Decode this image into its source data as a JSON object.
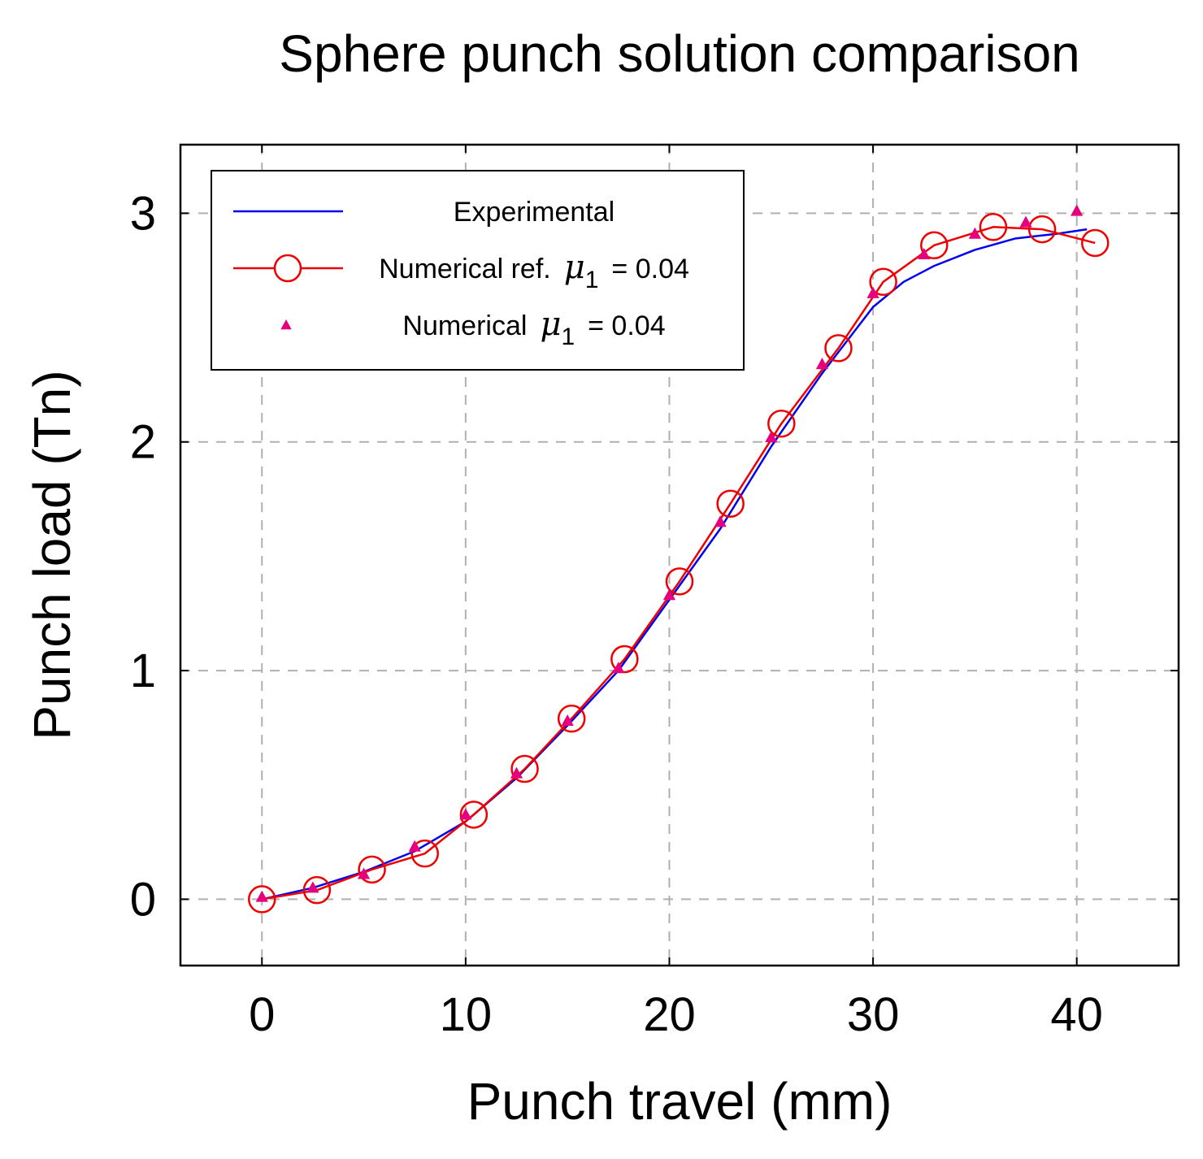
{
  "chart_data": {
    "type": "line",
    "title": "Sphere punch solution comparison",
    "xlabel": "Punch travel (mm)",
    "ylabel": "Punch load (Tn)",
    "xlim": [
      -4,
      45
    ],
    "ylim": [
      -0.29,
      3.3
    ],
    "xticks": [
      0,
      10,
      20,
      30,
      40
    ],
    "yticks": [
      0,
      1,
      2,
      3
    ],
    "xtick_labels": [
      "0",
      "10",
      "20",
      "30",
      "40"
    ],
    "ytick_labels": [
      "0",
      "1",
      "2",
      "3"
    ],
    "grid": true,
    "legend_position": "top-left",
    "series": [
      {
        "name": "Experimental",
        "style": "line",
        "color": "#0000ee",
        "x": [
          0,
          2.5,
          5,
          7.5,
          10,
          12.5,
          15,
          17.5,
          20,
          22.5,
          25,
          27.5,
          30,
          31.5,
          33,
          35,
          37,
          39,
          40.5
        ],
        "y": [
          0.0,
          0.05,
          0.12,
          0.21,
          0.34,
          0.53,
          0.76,
          1.0,
          1.31,
          1.62,
          1.98,
          2.3,
          2.59,
          2.7,
          2.77,
          2.84,
          2.89,
          2.91,
          2.93
        ]
      },
      {
        "name": "Numerical ref.",
        "name_suffix": "= 0.04",
        "symbol": "μ",
        "subscript": "1",
        "style": "line-circle",
        "color": "#ee0000",
        "x": [
          0,
          2.7,
          5.4,
          8.0,
          10.4,
          12.9,
          15.2,
          17.8,
          20.5,
          23.0,
          25.5,
          28.3,
          30.5,
          33.0,
          35.9,
          38.3,
          40.9
        ],
        "y": [
          0.0,
          0.04,
          0.13,
          0.2,
          0.37,
          0.57,
          0.79,
          1.05,
          1.39,
          1.73,
          2.08,
          2.41,
          2.7,
          2.86,
          2.94,
          2.93,
          2.87
        ]
      },
      {
        "name": "Numerical",
        "name_suffix": "= 0.04",
        "symbol": "μ",
        "subscript": "1",
        "style": "triangle-marker",
        "color": "#e6007e",
        "x": [
          0,
          2.5,
          5,
          7.5,
          10,
          12.5,
          15,
          17.5,
          20,
          22.5,
          25,
          27.5,
          30,
          32.5,
          35,
          37.5,
          40
        ],
        "y": [
          0.01,
          0.05,
          0.11,
          0.23,
          0.37,
          0.55,
          0.78,
          1.01,
          1.33,
          1.65,
          2.02,
          2.34,
          2.65,
          2.82,
          2.91,
          2.96,
          3.01
        ]
      }
    ]
  }
}
